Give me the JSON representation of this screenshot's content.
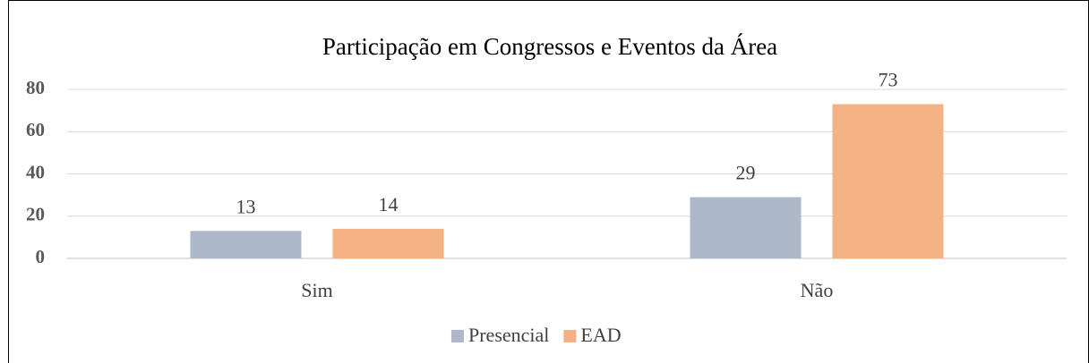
{
  "chart_data": {
    "type": "bar",
    "title": "Participação em Congressos e Eventos da Área",
    "categories": [
      "Sim",
      "Não"
    ],
    "series": [
      {
        "name": "Presencial",
        "color": "#adb9ca",
        "values": [
          13,
          29
        ]
      },
      {
        "name": "EAD",
        "color": "#f4b183",
        "values": [
          14,
          73
        ]
      }
    ],
    "ylim": [
      0,
      80
    ],
    "yticks": [
      0,
      20,
      40,
      60,
      80
    ],
    "grid": true,
    "legend": "bottom"
  }
}
